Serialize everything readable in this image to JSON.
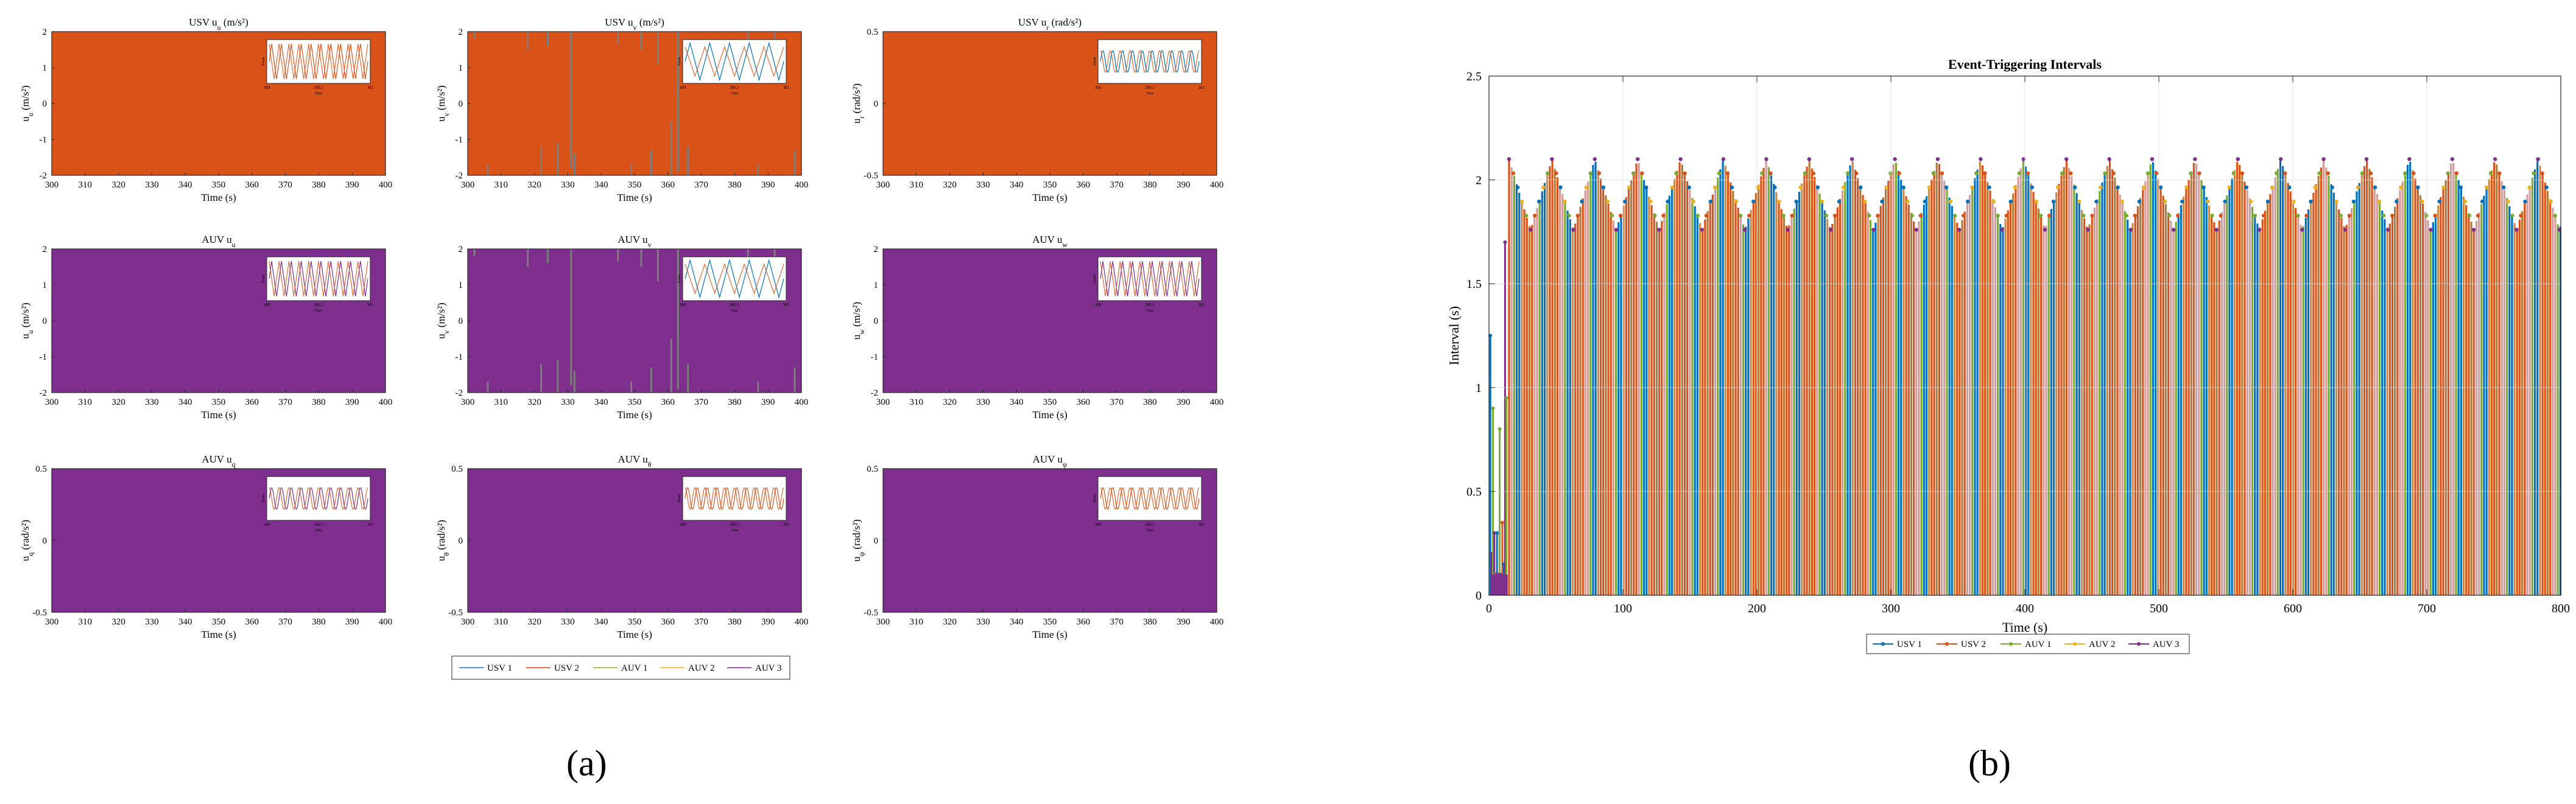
{
  "captions": {
    "a": "(a)",
    "b": "(b)"
  },
  "colors": {
    "usv1": "#0072BD",
    "usv2": "#D95319",
    "auv1": "#77AC30",
    "auv2": "#EDB120",
    "auv3": "#7E2F8E",
    "legend_usv1": "#4A90D9",
    "legend_usv2": "#E8734A",
    "legend_auv1": "#A6C85A",
    "legend_auv2": "#F2C94C",
    "legend_auv3": "#9B59B6"
  },
  "chart_data": [
    {
      "type": "line",
      "panel": "USV-u",
      "title_main": "USV u",
      "title_sub": "u",
      "title_unit": " (m/s²)",
      "ylabel_main": "u",
      "ylabel_sub": "u",
      "ylabel_unit": " (m/s²)",
      "xlabel": "Time (s)",
      "xlim": [
        300,
        400
      ],
      "ylim": [
        -2,
        2
      ],
      "xticks": [
        300,
        310,
        320,
        330,
        340,
        350,
        360,
        370,
        380,
        390,
        400
      ],
      "yticks": [
        -2,
        -1,
        0,
        1,
        2
      ],
      "fill_color": "usv2",
      "inset": {
        "wave": "triangle",
        "color": "usv2",
        "ylabel": "Zoom",
        "xticks": [
          "360",
          "360.5",
          "361"
        ],
        "xlabel": "Time"
      }
    },
    {
      "type": "line",
      "panel": "USV-v",
      "title_main": "USV u",
      "title_sub": "v",
      "title_unit": " (m/s²)",
      "ylabel_main": "u",
      "ylabel_sub": "v",
      "ylabel_unit": " (m/s²)",
      "xlabel": "Time (s)",
      "xlim": [
        300,
        400
      ],
      "ylim": [
        -2,
        2
      ],
      "xticks": [
        300,
        310,
        320,
        330,
        340,
        350,
        360,
        370,
        380,
        390,
        400
      ],
      "yticks": [
        -2,
        -1,
        0,
        1,
        2
      ],
      "fill_color": "usv2",
      "spikes": true,
      "inset": {
        "wave": "mixed",
        "color": "usv1",
        "ylabel": "Zoom",
        "xticks": [
          "360",
          "360.5",
          "361"
        ],
        "xlabel": "Time"
      }
    },
    {
      "type": "line",
      "panel": "USV-r",
      "title_main": "USV u",
      "title_sub": "r",
      "title_unit": " (rad/s²)",
      "ylabel_main": "u",
      "ylabel_sub": "r",
      "ylabel_unit": " (rad/s²)",
      "xlabel": "Time (s)",
      "xlim": [
        300,
        400
      ],
      "ylim": [
        -0.5,
        0.5
      ],
      "xticks": [
        300,
        310,
        320,
        330,
        340,
        350,
        360,
        370,
        380,
        390,
        400
      ],
      "yticks": [
        -0.5,
        0,
        0.5
      ],
      "fill_color": "usv2",
      "inset": {
        "wave": "sine",
        "color": "usv1",
        "ylabel": "Zoom",
        "xticks": [
          "360",
          "360.5",
          "361"
        ],
        "xlabel": "Time"
      }
    },
    {
      "type": "line",
      "panel": "AUV-u",
      "title_main": "AUV u",
      "title_sub": "u",
      "title_unit": "",
      "ylabel_main": "u",
      "ylabel_sub": "u",
      "ylabel_unit": " (m/s²)",
      "xlabel": "Time (s)",
      "xlim": [
        300,
        400
      ],
      "ylim": [
        -2,
        2
      ],
      "xticks": [
        300,
        310,
        320,
        330,
        340,
        350,
        360,
        370,
        380,
        390,
        400
      ],
      "yticks": [
        -2,
        -1,
        0,
        1,
        2
      ],
      "fill_color": "auv3",
      "inset": {
        "wave": "triangle",
        "color": "auv3",
        "ylabel": "Zoom",
        "xticks": [
          "360",
          "360.5",
          "361"
        ],
        "xlabel": "Time"
      }
    },
    {
      "type": "line",
      "panel": "AUV-v",
      "title_main": "AUV u",
      "title_sub": "v",
      "title_unit": "",
      "ylabel_main": "u",
      "ylabel_sub": "v",
      "ylabel_unit": " (m/s²)",
      "xlabel": "Time (s)",
      "xlim": [
        300,
        400
      ],
      "ylim": [
        -2,
        2
      ],
      "xticks": [
        300,
        310,
        320,
        330,
        340,
        350,
        360,
        370,
        380,
        390,
        400
      ],
      "yticks": [
        -2,
        -1,
        0,
        1,
        2
      ],
      "fill_color": "auv3",
      "spikes": true,
      "inset": {
        "wave": "mixed",
        "color": "auv2",
        "ylabel": "Zoom",
        "xticks": [
          "360",
          "360.5",
          "361"
        ],
        "xlabel": "Time"
      }
    },
    {
      "type": "line",
      "panel": "AUV-w",
      "title_main": "AUV u",
      "title_sub": "w",
      "title_unit": "",
      "ylabel_main": "u",
      "ylabel_sub": "w",
      "ylabel_unit": " (m/s²)",
      "xlabel": "Time (s)",
      "xlim": [
        300,
        400
      ],
      "ylim": [
        -2,
        2
      ],
      "xticks": [
        300,
        310,
        320,
        330,
        340,
        350,
        360,
        370,
        380,
        390,
        400
      ],
      "yticks": [
        -2,
        -1,
        0,
        1,
        2
      ],
      "fill_color": "auv3",
      "inset": {
        "wave": "triangle",
        "color": "auv3",
        "ylabel": "Zoom",
        "xticks": [
          "360",
          "360.5",
          "361"
        ],
        "xlabel": "Time"
      }
    },
    {
      "type": "line",
      "panel": "AUV-q",
      "title_main": "AUV u",
      "title_sub": "q",
      "title_unit": "",
      "ylabel_main": "u",
      "ylabel_sub": "q",
      "ylabel_unit": " (rad/s²)",
      "xlabel": "Time (s)",
      "xlim": [
        300,
        400
      ],
      "ylim": [
        -0.5,
        0.5
      ],
      "xticks": [
        300,
        310,
        320,
        330,
        340,
        350,
        360,
        370,
        380,
        390,
        400
      ],
      "yticks": [
        -0.5,
        0,
        0.5
      ],
      "fill_color": "auv3",
      "inset": {
        "wave": "sine",
        "color": "auv3",
        "ylabel": "Zoom",
        "xticks": [
          "360",
          "360.5",
          "361"
        ],
        "xlabel": "Time"
      }
    },
    {
      "type": "line",
      "panel": "AUV-theta",
      "title_main": "AUV u",
      "title_sub": "θ",
      "title_unit": "",
      "ylabel_main": "u",
      "ylabel_sub": "θ",
      "ylabel_unit": " (rad/s²)",
      "xlabel": "Time (s)",
      "xlim": [
        300,
        400
      ],
      "ylim": [
        -0.5,
        0.5
      ],
      "xticks": [
        300,
        310,
        320,
        330,
        340,
        350,
        360,
        370,
        380,
        390,
        400
      ],
      "yticks": [
        -0.5,
        0,
        0.5
      ],
      "fill_color": "auv3",
      "inset": {
        "wave": "sine",
        "color": "usv2",
        "ylabel": "Zoom",
        "xticks": [
          "360",
          "360.5",
          "361"
        ],
        "xlabel": "Time"
      }
    },
    {
      "type": "line",
      "panel": "AUV-psi",
      "title_main": "AUV u",
      "title_sub": "ψ",
      "title_unit": "",
      "ylabel_main": "u",
      "ylabel_sub": "ψ",
      "ylabel_unit": " (rad/s²)",
      "xlabel": "Time (s)",
      "xlim": [
        300,
        400
      ],
      "ylim": [
        -0.5,
        0.5
      ],
      "xticks": [
        300,
        310,
        320,
        330,
        340,
        350,
        360,
        370,
        380,
        390,
        400
      ],
      "yticks": [
        -0.5,
        0,
        0.5
      ],
      "fill_color": "auv3",
      "inset": {
        "wave": "sine",
        "color": "usv2",
        "ylabel": "Zoom",
        "xticks": [
          "360",
          "360.5",
          "361"
        ],
        "xlabel": "Time"
      }
    },
    {
      "type": "bar",
      "panel": "event-intervals",
      "title": "Event-Triggering Intervals",
      "xlabel": "Time (s)",
      "ylabel": "Interval (s)",
      "xlim": [
        0,
        800
      ],
      "ylim": [
        0,
        2.5
      ],
      "xticks": [
        0,
        100,
        200,
        300,
        400,
        500,
        600,
        700,
        800
      ],
      "yticks": [
        0,
        0.5,
        1,
        1.5,
        2,
        2.5
      ],
      "grid": true,
      "pattern": {
        "period_s": 32,
        "peak": 2.1,
        "trough": 1.76,
        "start_s": 15
      },
      "startup": [
        {
          "x": 1,
          "y": 1.25
        },
        {
          "x": 2,
          "y": 0.2
        },
        {
          "x": 3,
          "y": 0.9
        },
        {
          "x": 4,
          "y": 0.3
        },
        {
          "x": 5,
          "y": 0.1
        },
        {
          "x": 6,
          "y": 0.3
        },
        {
          "x": 7,
          "y": 0.1
        },
        {
          "x": 8,
          "y": 0.8
        },
        {
          "x": 9,
          "y": 0.1
        },
        {
          "x": 10,
          "y": 0.35
        },
        {
          "x": 11,
          "y": 0.15
        },
        {
          "x": 12,
          "y": 1.7
        },
        {
          "x": 13,
          "y": 0.95
        }
      ],
      "series": [
        {
          "name": "USV 1",
          "color": "usv1"
        },
        {
          "name": "USV 2",
          "color": "usv2"
        },
        {
          "name": "AUV 1",
          "color": "auv1"
        },
        {
          "name": "AUV 2",
          "color": "auv2"
        },
        {
          "name": "AUV 3",
          "color": "auv3"
        }
      ]
    }
  ],
  "legend_left": [
    "USV 1",
    "USV 2",
    "AUV 1",
    "AUV 2",
    "AUV 3"
  ],
  "legend_right": [
    "USV 1",
    "USV 2",
    "AUV 1",
    "AUV 2",
    "AUV 3"
  ]
}
